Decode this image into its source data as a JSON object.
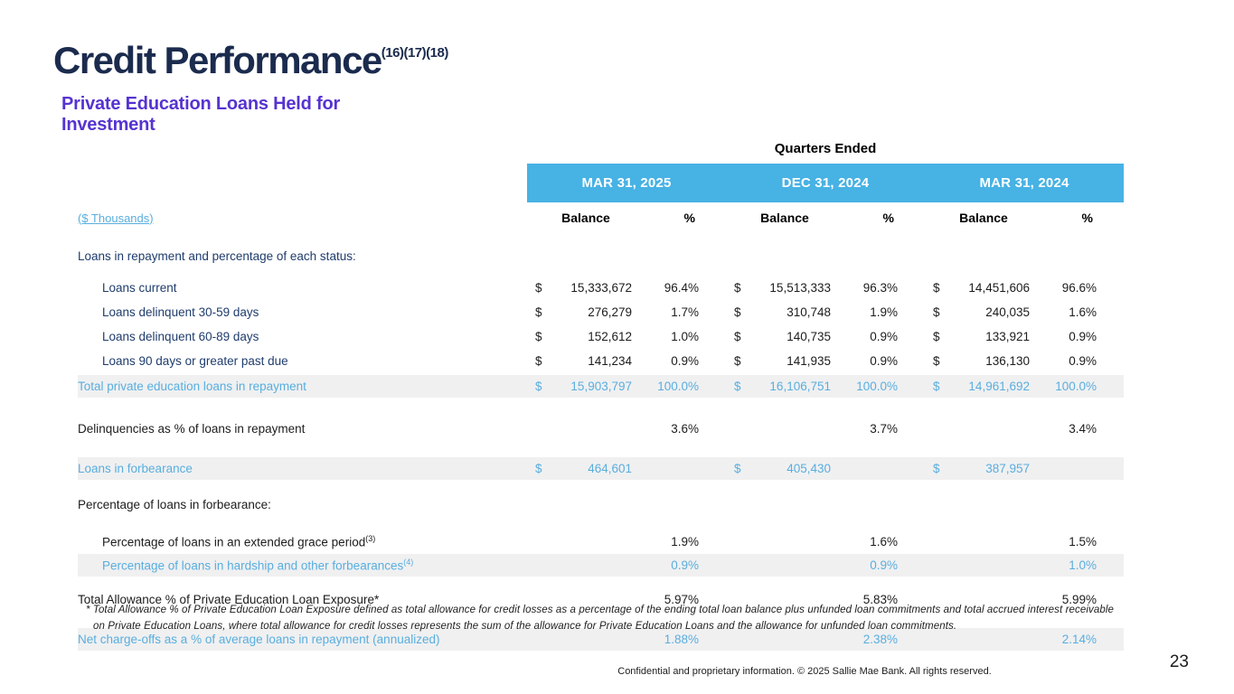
{
  "slide": {
    "title": "Credit Performance",
    "title_superscript": "(16)(17)(18)",
    "subtitle": "Private Education Loans Held for Investment",
    "footnote": "* Total Allowance % of Private Education Loan Exposure defined as total allowance for credit losses as a percentage of the ending total loan balance plus unfunded loan commitments and total accrued interest receivable on Private Education Loans, where total allowance for credit losses represents the sum of the allowance for Private Education Loans and the allowance for unfunded loan commitments.",
    "footer": "Confidential and proprietary information. © 2025 Sallie Mae Bank. All rights reserved.",
    "page_number": "23"
  },
  "colors": {
    "title_navy": "#1b2b4e",
    "subtitle_purple": "#5633d1",
    "band_blue": "#47b2e4",
    "highlight_blue_text": "#59aede",
    "label_navy": "#1f3c6d",
    "highlight_row_bg": "#f0f0f1"
  },
  "table": {
    "group_header": "Quarters Ended",
    "units_label": "($ Thousands)",
    "quarters": [
      "MAR 31, 2025",
      "DEC 31, 2024",
      "MAR 31, 2024"
    ],
    "col_headers": [
      "Balance",
      "%"
    ],
    "rows": [
      {
        "label": "Loans in repayment and percentage of each status:",
        "indent": 0,
        "navy": true,
        "highlight": false,
        "cells": null
      },
      {
        "label": "Loans current",
        "indent": 1,
        "navy": true,
        "highlight": false,
        "cells": [
          {
            "d": "$",
            "b": "15,333,672",
            "p": "96.4%"
          },
          {
            "d": "$",
            "b": "15,513,333",
            "p": "96.3%"
          },
          {
            "d": "$",
            "b": "14,451,606",
            "p": "96.6%"
          }
        ]
      },
      {
        "label": "Loans delinquent 30-59 days",
        "indent": 1,
        "navy": true,
        "highlight": false,
        "cells": [
          {
            "d": "$",
            "b": "276,279",
            "p": "1.7%"
          },
          {
            "d": "$",
            "b": "310,748",
            "p": "1.9%"
          },
          {
            "d": "$",
            "b": "240,035",
            "p": "1.6%"
          }
        ]
      },
      {
        "label": "Loans delinquent 60-89 days",
        "indent": 1,
        "navy": true,
        "highlight": false,
        "cells": [
          {
            "d": "$",
            "b": "152,612",
            "p": "1.0%"
          },
          {
            "d": "$",
            "b": "140,735",
            "p": "0.9%"
          },
          {
            "d": "$",
            "b": "133,921",
            "p": "0.9%"
          }
        ]
      },
      {
        "label": "Loans 90 days or greater past due",
        "indent": 1,
        "navy": true,
        "highlight": false,
        "cells": [
          {
            "d": "$",
            "b": "141,234",
            "p": "0.9%"
          },
          {
            "d": "$",
            "b": "141,935",
            "p": "0.9%"
          },
          {
            "d": "$",
            "b": "136,130",
            "p": "0.9%"
          }
        ]
      },
      {
        "label": "Total private education loans in repayment",
        "indent": 0,
        "navy": false,
        "highlight": true,
        "cells": [
          {
            "d": "$",
            "b": "15,903,797",
            "p": "100.0%"
          },
          {
            "d": "$",
            "b": "16,106,751",
            "p": "100.0%"
          },
          {
            "d": "$",
            "b": "14,961,692",
            "p": "100.0%"
          }
        ]
      },
      {
        "label": "Delinquencies as % of loans in repayment",
        "indent": 0,
        "navy": false,
        "highlight": false,
        "cells": [
          {
            "p": "3.6%"
          },
          {
            "p": "3.7%"
          },
          {
            "p": "3.4%"
          }
        ]
      },
      {
        "label": "Loans in forbearance",
        "indent": 0,
        "navy": false,
        "highlight": true,
        "cells": [
          {
            "d": "$",
            "b": "464,601"
          },
          {
            "d": "$",
            "b": "405,430"
          },
          {
            "d": "$",
            "b": "387,957"
          }
        ]
      },
      {
        "label": "Percentage of loans in forbearance:",
        "indent": 0,
        "navy": false,
        "highlight": false,
        "cells": null
      },
      {
        "label": "Percentage of loans in an extended grace period",
        "sup": "(3)",
        "indent": 1,
        "navy": false,
        "highlight": false,
        "cells": [
          {
            "p": "1.9%"
          },
          {
            "p": "1.6%"
          },
          {
            "p": "1.5%"
          }
        ]
      },
      {
        "label": "Percentage of loans in hardship and other forbearances",
        "sup": "(4)",
        "indent": 1,
        "navy": false,
        "highlight": true,
        "cells": [
          {
            "p": "0.9%"
          },
          {
            "p": "0.9%"
          },
          {
            "p": "1.0%"
          }
        ]
      },
      {
        "label": "Total Allowance % of Private Education Loan Exposure*",
        "indent": 0,
        "navy": false,
        "highlight": false,
        "cells": [
          {
            "p": "5.97%"
          },
          {
            "p": "5.83%"
          },
          {
            "p": "5.99%"
          }
        ]
      },
      {
        "label": "Net charge-offs as a % of average loans in repayment (annualized)",
        "indent": 0,
        "navy": false,
        "highlight": true,
        "cells": [
          {
            "p": "1.88%"
          },
          {
            "p": "2.38%"
          },
          {
            "p": "2.14%"
          }
        ]
      }
    ]
  }
}
